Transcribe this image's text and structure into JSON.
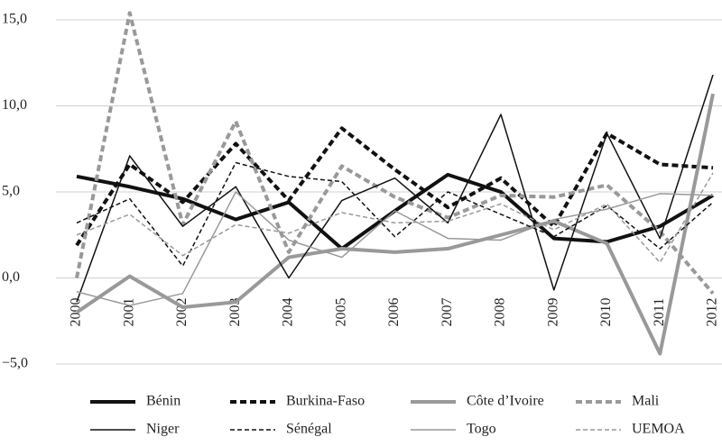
{
  "chart_data": {
    "type": "line",
    "categories": [
      "2000",
      "2001",
      "2002",
      "2003",
      "2004",
      "2005",
      "2006",
      "2007",
      "2008",
      "2009",
      "2010",
      "2011",
      "2012"
    ],
    "ylim": [
      -5,
      15
    ],
    "yticks": [
      {
        "value": 15,
        "label": "15,0"
      },
      {
        "value": 10,
        "label": "10,0"
      },
      {
        "value": 5,
        "label": "5,0"
      },
      {
        "value": 0,
        "label": "0,0"
      },
      {
        "value": -5,
        "label": "−5,0"
      }
    ],
    "grid": true,
    "legend": "bottom",
    "series": [
      {
        "name": "Bénin",
        "color": "#111111",
        "weight": "thick",
        "dashed": false,
        "values": [
          5.9,
          5.3,
          4.6,
          3.4,
          4.4,
          1.7,
          3.9,
          6.0,
          5.0,
          2.3,
          2.1,
          3.0,
          4.8
        ]
      },
      {
        "name": "Burkina-Faso",
        "color": "#111111",
        "weight": "thick",
        "dashed": true,
        "values": [
          1.9,
          6.6,
          4.4,
          7.8,
          4.5,
          8.7,
          6.3,
          4.1,
          5.8,
          3.0,
          8.4,
          6.6,
          6.4
        ]
      },
      {
        "name": "Côte d’Ivoire",
        "color": "#999999",
        "weight": "thick",
        "dashed": false,
        "values": [
          -2.0,
          0.1,
          -1.7,
          -1.4,
          1.2,
          1.7,
          1.5,
          1.7,
          2.5,
          3.3,
          2.0,
          -4.4,
          10.7
        ]
      },
      {
        "name": "Mali",
        "color": "#999999",
        "weight": "thick",
        "dashed": true,
        "values": [
          0.0,
          15.4,
          3.1,
          9.1,
          1.5,
          6.5,
          4.7,
          3.5,
          4.8,
          4.7,
          5.4,
          2.7,
          -0.9
        ]
      },
      {
        "name": "Niger",
        "color": "#111111",
        "weight": "thin",
        "dashed": false,
        "values": [
          -1.4,
          7.1,
          3.0,
          5.3,
          0.0,
          4.5,
          5.8,
          3.2,
          9.5,
          -0.7,
          8.4,
          2.3,
          11.8
        ]
      },
      {
        "name": "Sénégal",
        "color": "#111111",
        "weight": "thin",
        "dashed": true,
        "values": [
          3.2,
          4.6,
          0.7,
          6.7,
          5.9,
          5.6,
          2.4,
          5.0,
          3.7,
          2.4,
          4.2,
          1.7,
          4.4
        ]
      },
      {
        "name": "Togo",
        "color": "#999999",
        "weight": "thin",
        "dashed": false,
        "values": [
          -0.8,
          -1.6,
          -0.9,
          5.0,
          2.2,
          1.2,
          3.9,
          2.3,
          2.2,
          3.4,
          4.0,
          4.9,
          4.8
        ]
      },
      {
        "name": "UEMOA",
        "color": "#999999",
        "weight": "thin",
        "dashed": true,
        "values": [
          2.5,
          3.7,
          1.3,
          3.1,
          2.6,
          3.8,
          3.2,
          3.3,
          4.3,
          2.8,
          4.3,
          0.9,
          6.1
        ]
      }
    ]
  }
}
